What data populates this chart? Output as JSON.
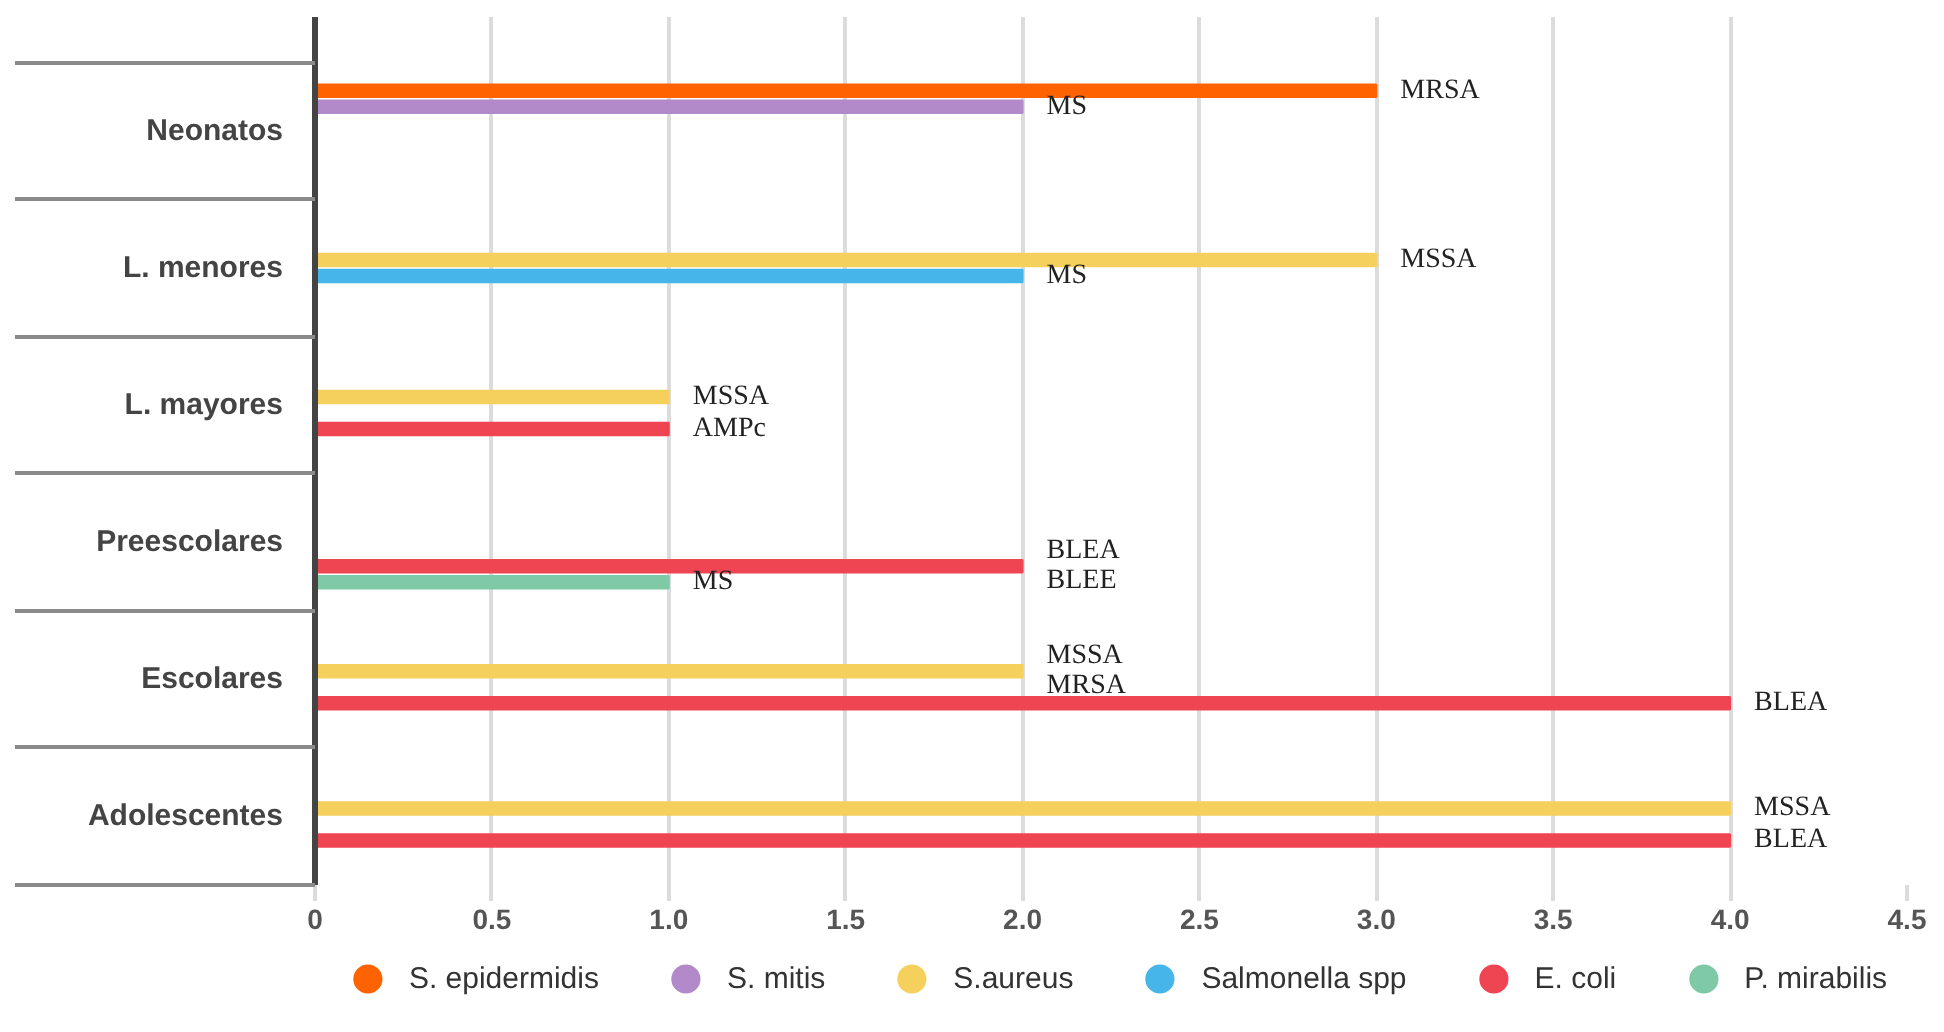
{
  "chart_data": {
    "type": "bar",
    "orientation": "horizontal",
    "categories": [
      "Neonatos",
      "L. menores",
      "L. mayores",
      "Preescolares",
      "Escolares",
      "Adolescentes"
    ],
    "series": [
      {
        "name": "S. epidermidis",
        "color": "#ff6200",
        "values": [
          3.0,
          null,
          null,
          null,
          null,
          null
        ],
        "value_labels": [
          "MRSA",
          null,
          null,
          null,
          null,
          null
        ]
      },
      {
        "name": "S. mitis",
        "color": "#b28ac9",
        "values": [
          2.0,
          null,
          null,
          null,
          null,
          null
        ],
        "value_labels": [
          "MS",
          null,
          null,
          null,
          null,
          null
        ]
      },
      {
        "name": "S.aureus",
        "color": "#f5d05c",
        "values": [
          null,
          3.0,
          1.0,
          null,
          2.0,
          4.0
        ],
        "value_labels": [
          null,
          "MSSA",
          "MSSA",
          null,
          "MSSA\nMRSA",
          "MSSA"
        ]
      },
      {
        "name": "Salmonella spp",
        "color": "#46b6ea",
        "values": [
          null,
          2.0,
          null,
          null,
          null,
          null
        ],
        "value_labels": [
          null,
          "MS",
          null,
          null,
          null,
          null
        ]
      },
      {
        "name": "E. coli",
        "color": "#ef4452",
        "values": [
          null,
          null,
          1.0,
          2.0,
          4.0,
          4.0
        ],
        "value_labels": [
          null,
          null,
          "AMPc",
          "BLEA\nBLEE",
          "BLEA",
          "BLEA"
        ]
      },
      {
        "name": "P. mirabilis",
        "color": "#80c9a6",
        "values": [
          null,
          null,
          null,
          1.0,
          null,
          null
        ],
        "value_labels": [
          null,
          null,
          null,
          "MS",
          null,
          null
        ]
      }
    ],
    "xlim": [
      0,
      4.5
    ],
    "xticks": [
      0,
      0.5,
      {
        "value": 1,
        "label": "1.0"
      },
      1.5,
      {
        "value": 2,
        "label": "2.0"
      },
      2.5,
      {
        "value": 3,
        "label": "3.0"
      },
      3.5,
      {
        "value": 4,
        "label": "4.0"
      },
      4.5
    ],
    "grid": "x",
    "legend": "bottom"
  }
}
